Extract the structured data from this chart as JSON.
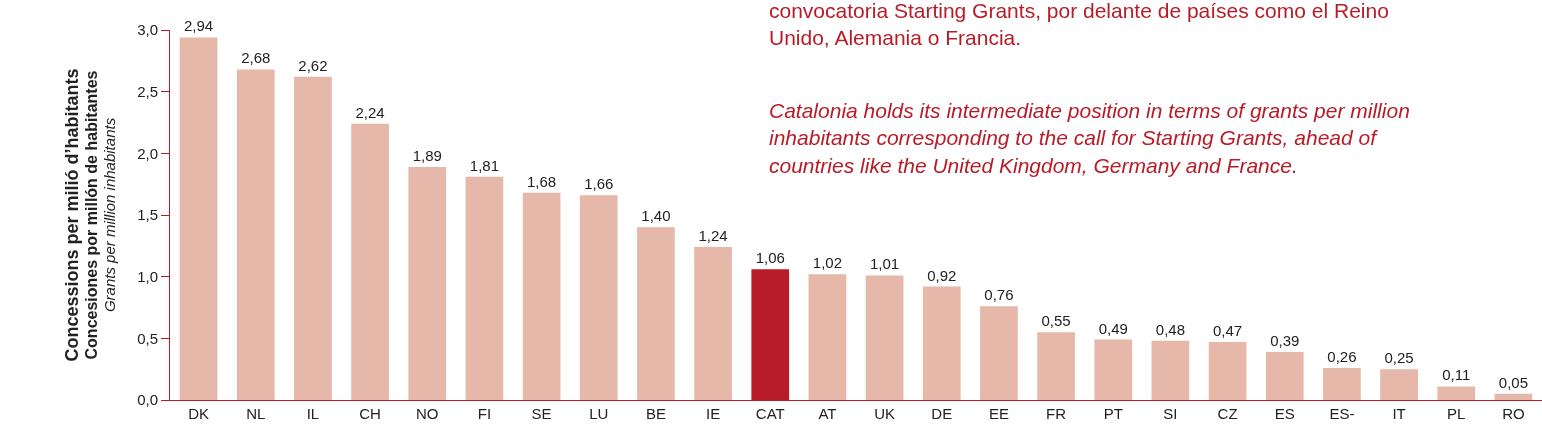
{
  "chart_data": {
    "type": "bar",
    "ylabel": "Concessions per milió d’habitants\nConcesiones por millón de habitantes\nGrants per million inhabitants",
    "categories": [
      "DK",
      "NL",
      "IL",
      "CH",
      "NO",
      "FI",
      "SE",
      "LU",
      "BE",
      "IE",
      "CAT",
      "AT",
      "UK",
      "DE",
      "EE",
      "FR",
      "PT",
      "SI",
      "CZ",
      "ES",
      "ES-",
      "IT",
      "PL",
      "RO"
    ],
    "values": [
      2.94,
      2.68,
      2.62,
      2.24,
      1.89,
      1.81,
      1.68,
      1.66,
      1.4,
      1.24,
      1.06,
      1.02,
      1.01,
      0.92,
      0.76,
      0.55,
      0.49,
      0.48,
      0.47,
      0.39,
      0.26,
      0.25,
      0.11,
      0.05
    ],
    "colors": [
      "#e6b8a9",
      "#e6b8a9",
      "#e6b8a9",
      "#e6b8a9",
      "#e6b8a9",
      "#e6b8a9",
      "#e6b8a9",
      "#e6b8a9",
      "#e6b8a9",
      "#e6b8a9",
      "#b71c28",
      "#e6b8a9",
      "#e6b8a9",
      "#e6b8a9",
      "#e6b8a9",
      "#e6b8a9",
      "#e6b8a9",
      "#e6b8a9",
      "#e6b8a9",
      "#e6b8a9",
      "#e6b8a9",
      "#e6b8a9",
      "#e6b8a9",
      "#e6b8a9"
    ],
    "value_labels": [
      "2,94",
      "2,68",
      "2,62",
      "2,24",
      "1,89",
      "1,81",
      "1,68",
      "1,66",
      "1,40",
      "1,24",
      "1,06",
      "1,02",
      "1,01",
      "0,92",
      "0,76",
      "0,55",
      "0,49",
      "0,48",
      "0,47",
      "0,39",
      "0,26",
      "0,25",
      "0,11",
      "0,05"
    ],
    "ylim": [
      0,
      3.0
    ],
    "yticks": [
      {
        "value": 0,
        "label": "0,0"
      },
      {
        "value": 0.5,
        "label": "0,5"
      },
      {
        "value": 1.0,
        "label": "1,0"
      },
      {
        "value": 1.5,
        "label": "1,5"
      },
      {
        "value": 2.0,
        "label": "2,0"
      },
      {
        "value": 2.5,
        "label": "2,5"
      },
      {
        "value": 3.0,
        "label": "3,0"
      }
    ],
    "legend": false,
    "annotations": [
      "convocatoria Starting Grants, por delante de países como el Reino\nUnido, Alemania o Francia.",
      "Catalonia holds its intermediate position in terms of grants per million\ninhabitants corresponding to the call for Starting Grants, ahead of\ncountries like the United Kingdom, Germany and France."
    ]
  }
}
